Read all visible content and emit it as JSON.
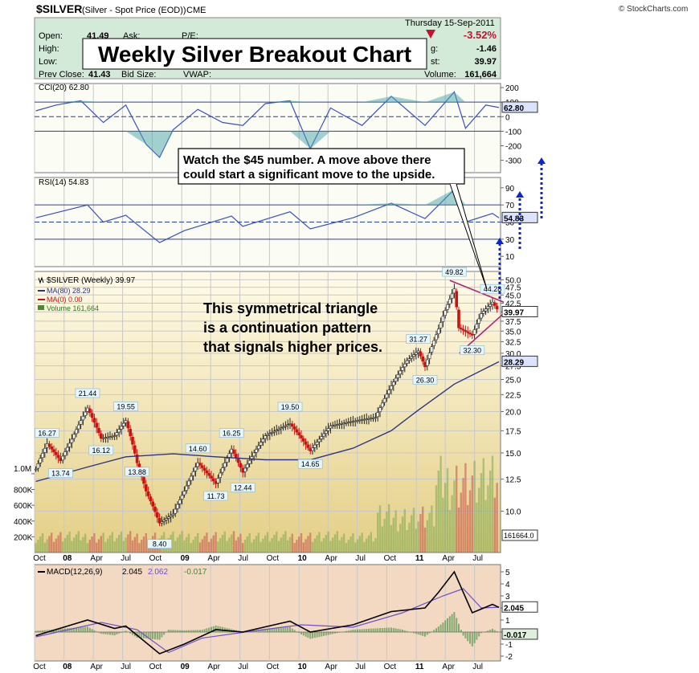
{
  "header": {
    "symbol": "$SILVER",
    "description": "(Silver - Spot Price (EOD))",
    "exchange": "CME",
    "credit": "© StockCharts.com",
    "date": "Thursday  15-Sep-2011"
  },
  "quote": {
    "open_label": "Open:",
    "open": "41.49",
    "ask_label": "Ask:",
    "pe_label": "P/E:",
    "high_label": "High:",
    "low_label": "Low:",
    "prev_close_label": "Prev Close:",
    "prev_close": "41.43",
    "bid_label": "Bid Size:",
    "vwap_label": "VWAP:",
    "pct_change": "-3.52%",
    "chg_label": "g:",
    "chg": "-1.46",
    "last_label": "st:",
    "last": "39.97",
    "volume_label": "Volume:",
    "volume": "161,664",
    "down_color": "#c8102e"
  },
  "annotations": {
    "title": "Weekly Silver Breakout Chart",
    "watch_line1": "Watch the $45 number.  A move above there",
    "watch_line2": "could start a significant move to the upside.",
    "triangle_line1": "This symmetrical triangle",
    "triangle_line2": "is a continuation pattern",
    "triangle_line3": "that signals higher prices."
  },
  "cci": {
    "legend": "CCI(20) 62.80",
    "current": "62.80",
    "ticks": [
      "200",
      "100",
      "0",
      "-100",
      "-200",
      "-300"
    ],
    "tick_values": [
      200,
      100,
      0,
      -100,
      -200,
      -300
    ]
  },
  "rsi": {
    "legend": "RSI(14) 54.83",
    "current": "54.83",
    "ticks": [
      "90",
      "70",
      "50",
      "30",
      "10"
    ],
    "tick_values": [
      90,
      70,
      50,
      30,
      10
    ]
  },
  "price": {
    "legend": "$SILVER (Weekly) 39.97",
    "ma80_legend": "MA(80) 28.29",
    "ma0_legend": "MA(0) 0.00",
    "volume_legend": "Volume 161,664",
    "current": "39.97",
    "ma80_current": "28.29",
    "volume_current": "161664.0",
    "ticks": [
      "50.0",
      "47.5",
      "45.0",
      "42.5",
      "40.0",
      "37.5",
      "35.0",
      "32.5",
      "30.0",
      "27.5",
      "25.0",
      "22.5",
      "20.0",
      "17.5",
      "15.0",
      "12.5",
      "10.0"
    ],
    "tick_values": [
      50,
      47.5,
      45,
      42.5,
      40,
      37.5,
      35,
      32.5,
      30,
      27.5,
      25,
      22.5,
      20,
      17.5,
      15,
      12.5,
      10
    ],
    "volume_ticks": [
      "1.0M",
      "800K",
      "600K",
      "400K",
      "200K"
    ],
    "volume_tick_values": [
      1000000,
      800000,
      600000,
      400000,
      200000
    ]
  },
  "macd": {
    "legend_name": "MACD(12,26,9)",
    "legend_macd": "2.045",
    "legend_signal": "2.062",
    "legend_hist": "-0.017",
    "current_macd": "2.045",
    "current_hist": "-0.017",
    "ticks": [
      "5",
      "4",
      "3",
      "2",
      "1",
      "0",
      "-1",
      "-2"
    ],
    "tick_values": [
      5,
      4,
      3,
      2,
      1,
      0,
      -1,
      -2
    ]
  },
  "x_axis": {
    "labels": [
      "Oct",
      "08",
      "Apr",
      "Jul",
      "Oct",
      "09",
      "Apr",
      "Jul",
      "Oct",
      "10",
      "Apr",
      "Jul",
      "Oct",
      "11",
      "Apr",
      "Jul"
    ],
    "bold": [
      false,
      true,
      false,
      false,
      false,
      true,
      false,
      false,
      false,
      true,
      false,
      false,
      false,
      true,
      false,
      false
    ]
  },
  "chart_data": {
    "type": "line",
    "title": "Weekly Silver Breakout Chart",
    "x_start": "2007-10",
    "x_end": "2011-09-15",
    "price_ylim": [
      7.5,
      50
    ],
    "price_scale": "log",
    "price_callouts": [
      {
        "date": "2007-11-09",
        "value": 16.27
      },
      {
        "date": "2007-12-21",
        "value": 13.74
      },
      {
        "date": "2008-03-14",
        "value": 21.44
      },
      {
        "date": "2008-04-25",
        "value": 16.12
      },
      {
        "date": "2008-07-11",
        "value": 19.55
      },
      {
        "date": "2008-08-15",
        "value": 13.88
      },
      {
        "date": "2008-10-24",
        "value": 8.4
      },
      {
        "date": "2009-02-20",
        "value": 14.6
      },
      {
        "date": "2009-04-17",
        "value": 11.73
      },
      {
        "date": "2009-06-05",
        "value": 16.25
      },
      {
        "date": "2009-07-10",
        "value": 12.44
      },
      {
        "date": "2009-12-04",
        "value": 19.5
      },
      {
        "date": "2010-02-05",
        "value": 14.65
      },
      {
        "date": "2011-01-07",
        "value": 31.27
      },
      {
        "date": "2011-01-28",
        "value": 26.3
      },
      {
        "date": "2011-04-29",
        "value": 49.82
      },
      {
        "date": "2011-06-24",
        "value": 32.3
      },
      {
        "date": "2011-08-26",
        "value": 44.28
      }
    ],
    "series": [
      {
        "name": "$SILVER (Weekly)",
        "points": [
          [
            "2007-10-05",
            13.4
          ],
          [
            "2007-11-09",
            16.0
          ],
          [
            "2007-12-21",
            14.2
          ],
          [
            "2008-01-25",
            16.5
          ],
          [
            "2008-03-14",
            20.5
          ],
          [
            "2008-04-25",
            16.6
          ],
          [
            "2008-06-06",
            16.9
          ],
          [
            "2008-07-11",
            18.8
          ],
          [
            "2008-08-15",
            14.0
          ],
          [
            "2008-09-12",
            11.5
          ],
          [
            "2008-10-24",
            9.2
          ],
          [
            "2008-12-05",
            9.8
          ],
          [
            "2009-01-09",
            11.5
          ],
          [
            "2009-02-20",
            14.0
          ],
          [
            "2009-04-17",
            12.1
          ],
          [
            "2009-06-05",
            15.4
          ],
          [
            "2009-07-10",
            13.1
          ],
          [
            "2009-09-18",
            16.9
          ],
          [
            "2009-12-04",
            18.4
          ],
          [
            "2010-02-05",
            15.2
          ],
          [
            "2010-04-09",
            18.1
          ],
          [
            "2010-06-18",
            18.7
          ],
          [
            "2010-08-27",
            19.2
          ],
          [
            "2010-10-15",
            23.9
          ],
          [
            "2010-12-03",
            28.5
          ],
          [
            "2011-01-07",
            30.5
          ],
          [
            "2011-01-28",
            27.3
          ],
          [
            "2011-03-11",
            35.5
          ],
          [
            "2011-04-29",
            47.0
          ],
          [
            "2011-05-13",
            35.8
          ],
          [
            "2011-06-24",
            34.0
          ],
          [
            "2011-07-22",
            39.5
          ],
          [
            "2011-08-26",
            42.8
          ],
          [
            "2011-09-15",
            39.97
          ]
        ]
      },
      {
        "name": "MA(80)",
        "points": [
          [
            "2007-10-05",
            12.3
          ],
          [
            "2008-03-14",
            13.6
          ],
          [
            "2008-07-11",
            14.6
          ],
          [
            "2008-12-05",
            14.9
          ],
          [
            "2009-04-17",
            14.6
          ],
          [
            "2009-09-18",
            14.3
          ],
          [
            "2010-02-05",
            14.3
          ],
          [
            "2010-06-18",
            15.5
          ],
          [
            "2010-10-15",
            17.5
          ],
          [
            "2011-01-07",
            20.2
          ],
          [
            "2011-04-29",
            24.2
          ],
          [
            "2011-09-15",
            28.29
          ]
        ]
      },
      {
        "name": "CCI(20)",
        "points": [
          [
            "2007-10-05",
            40
          ],
          [
            "2007-12-07",
            80
          ],
          [
            "2008-02-22",
            110
          ],
          [
            "2008-05-02",
            -40
          ],
          [
            "2008-07-11",
            80
          ],
          [
            "2008-09-12",
            -190
          ],
          [
            "2008-10-24",
            -280
          ],
          [
            "2008-12-05",
            -90
          ],
          [
            "2009-02-20",
            50
          ],
          [
            "2009-05-08",
            -40
          ],
          [
            "2009-07-10",
            -60
          ],
          [
            "2009-09-18",
            90
          ],
          [
            "2009-12-04",
            110
          ],
          [
            "2010-02-05",
            -220
          ],
          [
            "2010-04-09",
            60
          ],
          [
            "2010-07-16",
            -60
          ],
          [
            "2010-10-15",
            140
          ],
          [
            "2011-01-28",
            -60
          ],
          [
            "2011-04-29",
            170
          ],
          [
            "2011-06-03",
            -80
          ],
          [
            "2011-08-05",
            80
          ],
          [
            "2011-09-15",
            62.8
          ]
        ]
      },
      {
        "name": "RSI(14)",
        "points": [
          [
            "2007-10-05",
            55
          ],
          [
            "2008-03-14",
            70
          ],
          [
            "2008-05-02",
            50
          ],
          [
            "2008-07-11",
            58
          ],
          [
            "2008-10-24",
            26
          ],
          [
            "2009-01-09",
            40
          ],
          [
            "2009-06-05",
            57
          ],
          [
            "2009-07-10",
            45
          ],
          [
            "2009-12-04",
            62
          ],
          [
            "2010-02-05",
            42
          ],
          [
            "2010-06-18",
            55
          ],
          [
            "2010-10-15",
            72
          ],
          [
            "2011-01-28",
            54
          ],
          [
            "2011-04-29",
            88
          ],
          [
            "2011-06-03",
            50
          ],
          [
            "2011-08-26",
            60
          ],
          [
            "2011-09-15",
            54.83
          ]
        ]
      },
      {
        "name": "MACD",
        "points": [
          [
            "2007-10-05",
            -0.3
          ],
          [
            "2008-03-14",
            1.0
          ],
          [
            "2008-06-06",
            0.3
          ],
          [
            "2008-07-11",
            0.5
          ],
          [
            "2008-10-24",
            -1.8
          ],
          [
            "2009-01-09",
            -1.0
          ],
          [
            "2009-04-17",
            0.2
          ],
          [
            "2009-07-10",
            0.0
          ],
          [
            "2009-12-04",
            0.9
          ],
          [
            "2010-02-05",
            0.0
          ],
          [
            "2010-06-18",
            0.6
          ],
          [
            "2010-10-15",
            1.7
          ],
          [
            "2011-01-28",
            2.0
          ],
          [
            "2011-03-11",
            3.3
          ],
          [
            "2011-04-29",
            5.0
          ],
          [
            "2011-06-24",
            1.6
          ],
          [
            "2011-08-26",
            2.3
          ],
          [
            "2011-09-15",
            2.045
          ]
        ]
      },
      {
        "name": "Signal",
        "points": [
          [
            "2007-10-05",
            -0.4
          ],
          [
            "2008-04-25",
            0.8
          ],
          [
            "2008-08-15",
            0.2
          ],
          [
            "2008-11-21",
            -1.7
          ],
          [
            "2009-03-06",
            -0.5
          ],
          [
            "2009-08-14",
            0.1
          ],
          [
            "2010-01-08",
            0.6
          ],
          [
            "2010-06-18",
            0.4
          ],
          [
            "2010-11-19",
            1.6
          ],
          [
            "2011-03-25",
            3.0
          ],
          [
            "2011-05-27",
            3.6
          ],
          [
            "2011-07-22",
            2.0
          ],
          [
            "2011-09-15",
            2.062
          ]
        ]
      }
    ]
  }
}
